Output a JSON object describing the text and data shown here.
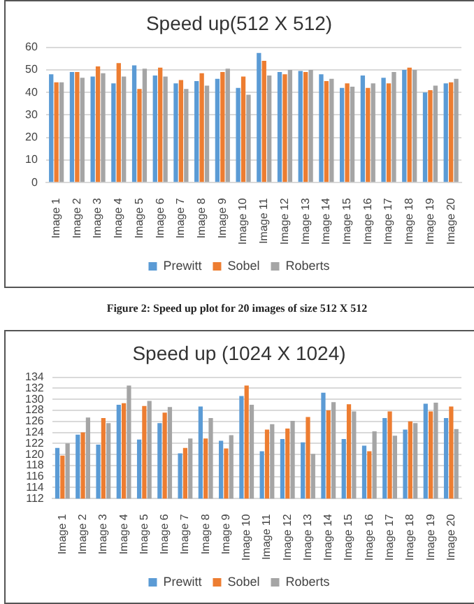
{
  "chart_data": [
    {
      "type": "bar",
      "title": "Speed up(512 X 512)",
      "categories": [
        "Image 1",
        "Image 2",
        "Image 3",
        "Image 4",
        "Image 5",
        "Image 6",
        "Image 7",
        "Image 8",
        "Image 9",
        "Image 10",
        "Image 11",
        "Image 12",
        "Image 13",
        "Image 14",
        "Image 15",
        "Image 16",
        "Image 17",
        "Image 18",
        "Image 19",
        "Image 20"
      ],
      "series": [
        {
          "name": "Prewitt",
          "color": "#5b9bd5",
          "values": [
            48,
            49,
            47,
            44,
            52,
            47.5,
            44,
            45,
            46,
            42,
            57.5,
            49,
            49.5,
            48,
            42,
            47.5,
            46.5,
            50,
            40,
            44
          ]
        },
        {
          "name": "Sobel",
          "color": "#ed7d31",
          "values": [
            44.5,
            49,
            51.5,
            53,
            41.5,
            51,
            45.5,
            48.5,
            49,
            47,
            54,
            48,
            49,
            45,
            44,
            42,
            44,
            51,
            41,
            44.5
          ]
        },
        {
          "name": "Roberts",
          "color": "#a5a5a5",
          "values": [
            44.5,
            46.5,
            48.5,
            47,
            50.5,
            47,
            41.5,
            43,
            50.5,
            39,
            47.5,
            50,
            50,
            46,
            42.5,
            44,
            49,
            50,
            43,
            46
          ]
        }
      ],
      "ylim": [
        0,
        60
      ],
      "yticks": [
        0,
        10,
        20,
        30,
        40,
        50,
        60
      ],
      "grid": "y",
      "legend": "bottom",
      "annotations": [
        "Figure 2: Speed up plot for 20 images of size 512 X 512"
      ]
    },
    {
      "type": "bar",
      "title": "Speed up (1024 X 1024)",
      "categories": [
        "Image 1",
        "Image 2",
        "Image 3",
        "Image 4",
        "Image 5",
        "Image 6",
        "Image 7",
        "Image 8",
        "Image 9",
        "Image 10",
        "Image 11",
        "Image 12",
        "Image 13",
        "Image 14",
        "Image 15",
        "Image 16",
        "Image 17",
        "Image 18",
        "Image 19",
        "Image 20"
      ],
      "series": [
        {
          "name": "Prewitt",
          "color": "#5b9bd5",
          "values": [
            121.2,
            123.6,
            121.8,
            129,
            122.7,
            125.7,
            120.2,
            128.7,
            122.5,
            130.6,
            120.6,
            122.8,
            122.2,
            131.2,
            122.8,
            121.6,
            126.6,
            124.5,
            129.2,
            126.6
          ]
        },
        {
          "name": "Sobel",
          "color": "#ed7d31",
          "values": [
            119.8,
            124,
            126.6,
            129.3,
            128.8,
            127.6,
            121.2,
            122.9,
            121.1,
            132.5,
            124.5,
            124.7,
            126.8,
            128,
            129.1,
            120.6,
            127.8,
            126,
            127.8,
            128.7
          ]
        },
        {
          "name": "Roberts",
          "color": "#a5a5a5",
          "values": [
            122,
            126.7,
            125.7,
            132.5,
            129.7,
            128.6,
            122.9,
            126.6,
            123.5,
            129,
            125.5,
            126.1,
            120.1,
            129.5,
            127.8,
            124.2,
            123.4,
            125.7,
            129.4,
            124.6
          ]
        }
      ],
      "ylim": [
        112,
        134
      ],
      "yticks": [
        112,
        114,
        116,
        118,
        120,
        122,
        124,
        126,
        128,
        130,
        132,
        134
      ],
      "grid": "y",
      "legend": "bottom"
    }
  ]
}
